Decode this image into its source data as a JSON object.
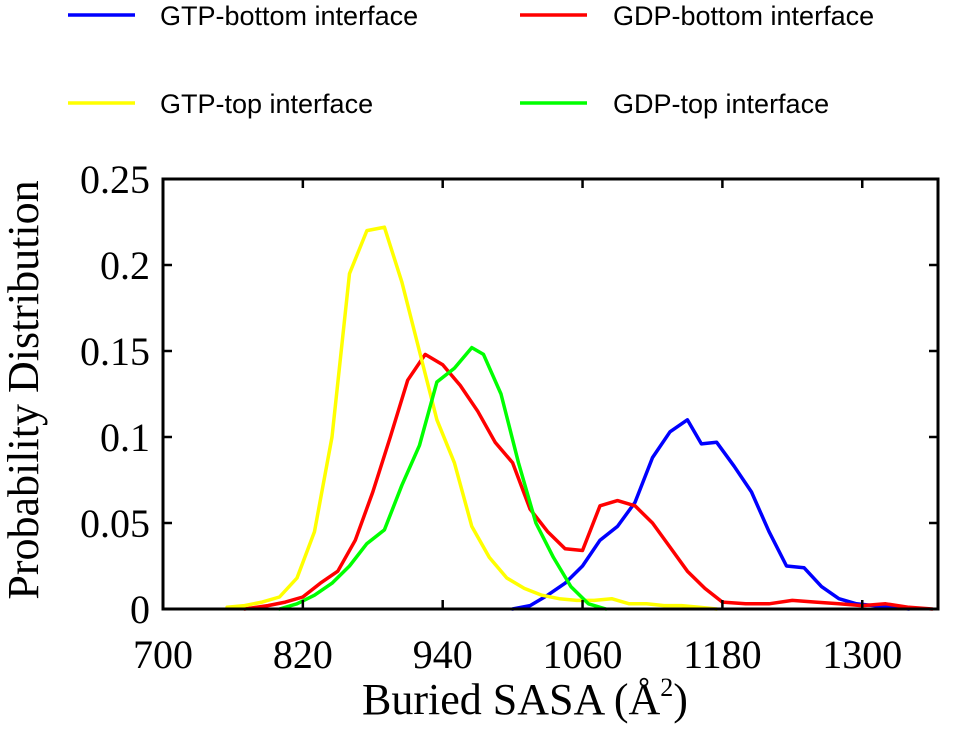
{
  "chart_data": {
    "type": "line",
    "title": "",
    "xlabel": "Buried SASA (Å",
    "xlabel_sup": "2",
    "xlabel_close": ")",
    "ylabel": "Probability Distribution",
    "xlim": [
      700,
      1365
    ],
    "ylim": [
      0,
      0.25
    ],
    "xticks": [
      700,
      820,
      940,
      1060,
      1180,
      1300
    ],
    "xtick_labels": [
      "700",
      "820",
      "940",
      "1060",
      "1180",
      "1300"
    ],
    "yticks": [
      0,
      0.05,
      0.1,
      0.15,
      0.2,
      0.25
    ],
    "ytick_labels": [
      "0",
      "0.05",
      "0.1",
      "0.15",
      "0.2",
      "0.25"
    ],
    "legend_position": "top, outside plot (2 columns)",
    "series": [
      {
        "name": "GTP-bottom interface",
        "color": "#0000ff",
        "x": [
          1000,
          1015,
          1030,
          1045,
          1060,
          1075,
          1090,
          1105,
          1120,
          1135,
          1150,
          1162,
          1175,
          1190,
          1205,
          1220,
          1235,
          1250,
          1265,
          1280,
          1295,
          1310,
          1325,
          1340
        ],
        "y": [
          0,
          0.002,
          0.008,
          0.015,
          0.025,
          0.04,
          0.048,
          0.062,
          0.088,
          0.103,
          0.11,
          0.096,
          0.097,
          0.083,
          0.068,
          0.045,
          0.025,
          0.024,
          0.013,
          0.006,
          0.003,
          0.002,
          0.001,
          0
        ]
      },
      {
        "name": "GDP-bottom interface",
        "color": "#ff0000",
        "x": [
          770,
          790,
          805,
          820,
          835,
          850,
          865,
          880,
          895,
          910,
          925,
          940,
          955,
          970,
          985,
          1000,
          1015,
          1030,
          1045,
          1060,
          1075,
          1090,
          1105,
          1120,
          1135,
          1150,
          1165,
          1180,
          1200,
          1220,
          1240,
          1260,
          1280,
          1300,
          1320,
          1340,
          1360
        ],
        "y": [
          0,
          0.002,
          0.004,
          0.007,
          0.015,
          0.022,
          0.04,
          0.068,
          0.1,
          0.133,
          0.148,
          0.142,
          0.13,
          0.115,
          0.097,
          0.085,
          0.058,
          0.045,
          0.035,
          0.034,
          0.06,
          0.063,
          0.06,
          0.05,
          0.036,
          0.022,
          0.012,
          0.004,
          0.003,
          0.003,
          0.005,
          0.004,
          0.003,
          0.002,
          0.003,
          0.001,
          0
        ]
      },
      {
        "name": "GTP-top interface",
        "color": "#ffff00",
        "x": [
          755,
          770,
          785,
          800,
          815,
          830,
          845,
          860,
          875,
          890,
          905,
          920,
          935,
          950,
          965,
          980,
          995,
          1010,
          1025,
          1040,
          1055,
          1070,
          1085,
          1100,
          1115,
          1130,
          1145,
          1160,
          1175
        ],
        "y": [
          0.001,
          0.002,
          0.004,
          0.007,
          0.018,
          0.045,
          0.1,
          0.195,
          0.22,
          0.222,
          0.19,
          0.15,
          0.11,
          0.085,
          0.048,
          0.03,
          0.018,
          0.012,
          0.008,
          0.006,
          0.005,
          0.005,
          0.006,
          0.003,
          0.003,
          0.002,
          0.002,
          0.001,
          0
        ]
      },
      {
        "name": "GDP-top interface",
        "color": "#00ff00",
        "x": [
          800,
          815,
          830,
          845,
          860,
          875,
          890,
          905,
          920,
          935,
          950,
          965,
          975,
          990,
          1005,
          1020,
          1035,
          1050,
          1065,
          1080
        ],
        "y": [
          0,
          0.003,
          0.008,
          0.015,
          0.025,
          0.038,
          0.046,
          0.072,
          0.095,
          0.132,
          0.14,
          0.152,
          0.148,
          0.125,
          0.085,
          0.05,
          0.03,
          0.013,
          0.003,
          0
        ]
      }
    ]
  }
}
